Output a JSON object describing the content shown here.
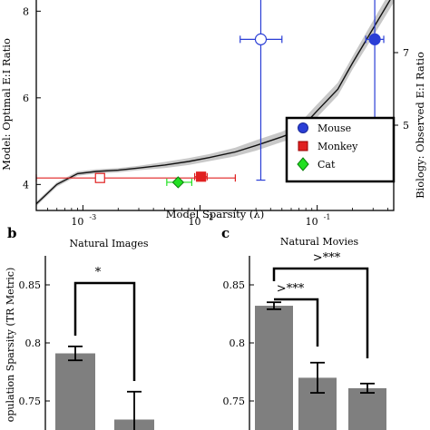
{
  "chart_data": [
    {
      "panel": "a",
      "type": "line",
      "xscale": "log",
      "xlabel": "Model Sparsity (λ)",
      "ylabel_left": "Model: Optimal E:I Ratio",
      "ylabel_right": "Biology: Observed E:I Ratio",
      "xlim": [
        0.0004,
        0.45
      ],
      "ylim_left": [
        3.4,
        8.3
      ],
      "left_ticks": [
        "4",
        "6",
        "8"
      ],
      "right_ticks": [
        "5",
        "7"
      ],
      "x_tick_labels": [
        {
          "exp": "-3"
        },
        {
          "exp": "-2"
        },
        {
          "exp": "-1"
        }
      ],
      "model_curve": {
        "x": [
          0.0004,
          0.0006,
          0.0009,
          0.0013,
          0.002,
          0.003,
          0.005,
          0.008,
          0.012,
          0.02,
          0.03,
          0.05,
          0.07,
          0.1,
          0.15,
          0.2,
          0.3,
          0.45
        ],
        "y": [
          3.55,
          4.0,
          4.25,
          4.3,
          4.33,
          4.38,
          4.45,
          4.53,
          4.62,
          4.75,
          4.9,
          5.1,
          5.25,
          5.7,
          6.2,
          6.8,
          7.6,
          8.4
        ],
        "band": [
          0.05,
          0.05,
          0.05,
          0.05,
          0.05,
          0.05,
          0.07,
          0.08,
          0.08,
          0.1,
          0.12,
          0.12,
          0.15,
          0.15,
          0.15,
          0.15,
          0.18,
          0.2
        ]
      },
      "legend": {
        "position": "lower-right",
        "entries": [
          "Mouse",
          "Monkey",
          "Cat"
        ]
      },
      "points": [
        {
          "species": "Mouse",
          "color": "#2a3ed6",
          "open": {
            "x": 0.033,
            "y": 7.35,
            "xlo": 0.022,
            "xhi": 0.05,
            "ylo": 4.1,
            "yhi": 8.3
          },
          "filled": {
            "x": 0.31,
            "y": 7.35,
            "xlo": 0.26,
            "xhi": 0.37,
            "ylo": 4.1,
            "yhi": 8.3
          }
        },
        {
          "species": "Monkey",
          "color": "#e02020",
          "open": {
            "x": 0.0014,
            "y": 4.15,
            "xlo": 0.0004,
            "xhi": 0.02
          },
          "filled": {
            "x": 0.0102,
            "y": 4.18,
            "xlo": 0.009,
            "xhi": 0.0115
          }
        },
        {
          "species": "Cat",
          "color": "#22e022",
          "filled": {
            "x": 0.0065,
            "y": 4.05,
            "xlo": 0.0052,
            "xhi": 0.0085
          }
        }
      ]
    },
    {
      "panel": "b",
      "type": "bar",
      "title": "Natural Images",
      "ylabel": "opulation Sparsity (TR Metric)",
      "ylim": [
        0.725,
        0.875
      ],
      "y_ticks": [
        "0.85",
        "0.8",
        "0.75"
      ],
      "values": [
        0.791,
        0.734
      ],
      "errors": [
        0.006,
        0.024
      ],
      "significance": [
        {
          "pair": [
            0,
            1
          ],
          "label": "*"
        }
      ]
    },
    {
      "panel": "c",
      "type": "bar",
      "title": "Natural Movies",
      "ylim": [
        0.725,
        0.875
      ],
      "y_ticks": [
        "0.85",
        "0.8",
        "0.75"
      ],
      "values": [
        0.832,
        0.77,
        0.761
      ],
      "errors": [
        0.003,
        0.013,
        0.004
      ],
      "significance": [
        {
          "pair": [
            0,
            1
          ],
          "label": ">***"
        },
        {
          "pair": [
            0,
            2
          ],
          "label": ">***"
        }
      ]
    }
  ],
  "labels": {
    "panel_b": "b",
    "panel_c": "c",
    "legend_mouse": "Mouse",
    "legend_monkey": "Monkey",
    "legend_cat": "Cat",
    "x_base": "10",
    "title_b": "Natural Images",
    "title_c": "Natural Movies"
  },
  "colors": {
    "bar": "#7f7f7f",
    "curve": "#111111",
    "band": "#c8c8c8",
    "mouse": "#2a3ed6",
    "monkey": "#e02020",
    "cat": "#22e022"
  }
}
